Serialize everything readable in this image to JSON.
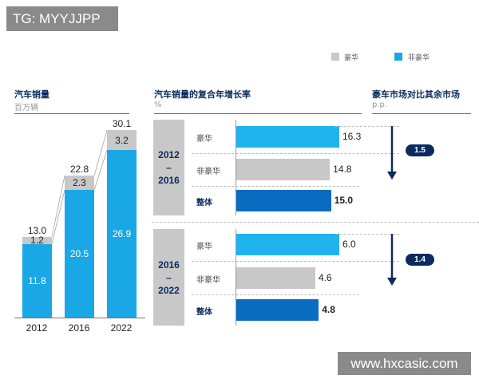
{
  "watermarks": {
    "top_left": "TG: MYYJJPP",
    "bottom_right": "www.hxcasic.com"
  },
  "legend": [
    {
      "label": "豪华",
      "color": "#c8c8c8"
    },
    {
      "label": "非豪华",
      "color": "#1aa7e6"
    }
  ],
  "colors": {
    "luxury_bar": "#1fb4ee",
    "nonluxury_bar": "#c8c8c8",
    "overall_bar": "#0a6cc0",
    "navy": "#0b2a5e",
    "sales_lux": "#c8c8c8",
    "sales_nonlux": "#1aa7e6"
  },
  "chart_data": [
    {
      "type": "bar",
      "title": "汽车销量",
      "subtitle": "百万辆",
      "stacked": true,
      "categories": [
        "2012",
        "2016",
        "2022"
      ],
      "series": [
        {
          "name": "非豪华",
          "values": [
            11.8,
            20.5,
            26.9
          ]
        },
        {
          "name": "豪华",
          "values": [
            1.2,
            2.3,
            3.2
          ]
        }
      ],
      "totals": [
        "13.0",
        "22.8",
        "30.1"
      ],
      "labels_nonlux": [
        "11.8",
        "20.5",
        "26.9"
      ],
      "labels_lux": [
        "1.2",
        "2.3",
        "3.2"
      ]
    },
    {
      "type": "bar",
      "orientation": "horizontal",
      "title": "汽车销量的复合年增长率",
      "subtitle": "%",
      "panels": [
        {
          "period": [
            "2012",
            "–",
            "2016"
          ],
          "categories": [
            "豪华",
            "非豪华",
            "整体"
          ],
          "values": [
            16.3,
            14.8,
            15.0
          ],
          "labels": [
            "16.3",
            "14.8",
            "15.0"
          ]
        },
        {
          "period": [
            "2016",
            "–",
            "2022"
          ],
          "categories": [
            "豪华",
            "非豪华",
            "整体"
          ],
          "values": [
            6.0,
            4.6,
            4.8
          ],
          "labels": [
            "6.0",
            "4.6",
            "4.8"
          ]
        }
      ]
    },
    {
      "type": "annotation",
      "title": "豪车市场对比其余市场",
      "subtitle": "p.p.",
      "differences": [
        "1.5",
        "1.4"
      ]
    }
  ]
}
